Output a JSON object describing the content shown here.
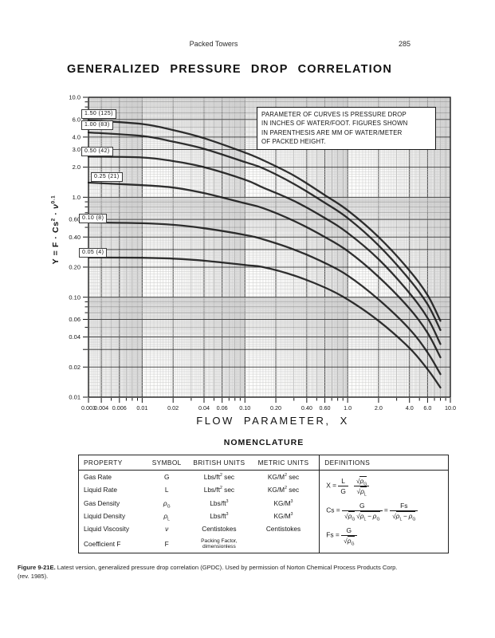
{
  "page": {
    "header": "Packed Towers",
    "page_number": "285"
  },
  "title": "GENERALIZED PRESSURE DROP CORRELATION",
  "chart_data": {
    "type": "line",
    "x_scale": "log",
    "y_scale": "log",
    "xlim": [
      0.003,
      10
    ],
    "ylim": [
      0.01,
      10
    ],
    "grid": true,
    "xlabel": "FLOW PARAMETER, X",
    "ylabel": "Y = F·Cs²·ν^0.1",
    "ylabel_html": "Y = F · Cs<sup>2</sup> · <i>ν</i><sup>0.1</sup>",
    "annotation": "PARAMETER OF CURVES IS PRESSURE DROP IN INCHES OF WATER/FOOT. FIGURES SHOWN IN PARENTHESIS ARE MM OF WATER/METER OF PACKED HEIGHT.",
    "annotation_html": "PARAMETER OF CURVES IS PRESSURE DROP<br>IN INCHES OF WATER/FOOT. FIGURES SHOWN<br>IN PARENTHESIS ARE MM OF WATER/METER<br>OF PACKED HEIGHT.",
    "x_ticks": {
      "values": [
        0.003,
        0.004,
        0.006,
        0.01,
        0.02,
        0.04,
        0.06,
        0.1,
        0.2,
        0.4,
        0.6,
        1.0,
        2.0,
        4.0,
        6.0,
        10.0
      ],
      "labels": [
        "0.003",
        "0.004",
        "0.006",
        "0.01",
        "0.02",
        "0.04",
        "0.06",
        "0.10",
        "0.20",
        "0.40",
        "0.60",
        "1.0",
        "2.0",
        "4.0",
        "6.0",
        "10.0"
      ]
    },
    "y_ticks": {
      "values": [
        10.0,
        6.0,
        4.0,
        3.0,
        2.0,
        1.0,
        0.6,
        0.4,
        0.2,
        0.1,
        0.06,
        0.04,
        0.02,
        0.01
      ],
      "labels": [
        "10.0",
        "6.0",
        "4.0",
        "3.0",
        "2.0",
        "1.0",
        "0.60",
        "0.40",
        "0.20",
        "0.10",
        "0.06",
        "0.04",
        "0.02",
        "0.01"
      ]
    },
    "curves": [
      {
        "label": "1.50 (125)",
        "pressure_drop_in_per_ft": 1.5,
        "mm_per_m": 125,
        "points": [
          [
            0.003,
            5.9
          ],
          [
            0.01,
            5.4
          ],
          [
            0.02,
            4.7
          ],
          [
            0.04,
            3.9
          ],
          [
            0.1,
            2.8
          ],
          [
            0.15,
            2.35
          ],
          [
            0.3,
            1.65
          ],
          [
            0.6,
            1.05
          ],
          [
            1.0,
            0.74
          ],
          [
            2.0,
            0.4
          ],
          [
            4.0,
            0.185
          ],
          [
            6.0,
            0.105
          ],
          [
            8.0,
            0.058
          ]
        ]
      },
      {
        "label": "1.00 (83)",
        "pressure_drop_in_per_ft": 1.0,
        "mm_per_m": 83,
        "points": [
          [
            0.003,
            4.45
          ],
          [
            0.01,
            4.1
          ],
          [
            0.02,
            3.6
          ],
          [
            0.04,
            3.05
          ],
          [
            0.1,
            2.25
          ],
          [
            0.15,
            1.95
          ],
          [
            0.3,
            1.36
          ],
          [
            0.6,
            0.88
          ],
          [
            1.0,
            0.62
          ],
          [
            2.0,
            0.33
          ],
          [
            4.0,
            0.15
          ],
          [
            6.0,
            0.085
          ],
          [
            8.0,
            0.047
          ]
        ]
      },
      {
        "label": "0.50 (42)",
        "pressure_drop_in_per_ft": 0.5,
        "mm_per_m": 42,
        "points": [
          [
            0.003,
            2.55
          ],
          [
            0.01,
            2.5
          ],
          [
            0.02,
            2.3
          ],
          [
            0.04,
            2.0
          ],
          [
            0.1,
            1.5
          ],
          [
            0.15,
            1.25
          ],
          [
            0.3,
            0.92
          ],
          [
            0.6,
            0.62
          ],
          [
            1.0,
            0.44
          ],
          [
            2.0,
            0.24
          ],
          [
            4.0,
            0.11
          ],
          [
            6.0,
            0.062
          ],
          [
            8.0,
            0.034
          ]
        ]
      },
      {
        "label": "0.25 (21)",
        "pressure_drop_in_per_ft": 0.25,
        "mm_per_m": 21,
        "points": [
          [
            0.003,
            1.4
          ],
          [
            0.01,
            1.32
          ],
          [
            0.02,
            1.25
          ],
          [
            0.04,
            1.1
          ],
          [
            0.1,
            0.87
          ],
          [
            0.15,
            0.78
          ],
          [
            0.3,
            0.58
          ],
          [
            0.6,
            0.4
          ],
          [
            1.0,
            0.29
          ],
          [
            2.0,
            0.16
          ],
          [
            4.0,
            0.077
          ],
          [
            6.0,
            0.044
          ],
          [
            8.0,
            0.025
          ]
        ]
      },
      {
        "label": "0.10 (8)",
        "pressure_drop_in_per_ft": 0.1,
        "mm_per_m": 8,
        "points": [
          [
            0.003,
            0.56
          ],
          [
            0.01,
            0.55
          ],
          [
            0.02,
            0.53
          ],
          [
            0.04,
            0.49
          ],
          [
            0.1,
            0.42
          ],
          [
            0.15,
            0.38
          ],
          [
            0.3,
            0.3
          ],
          [
            0.6,
            0.22
          ],
          [
            1.0,
            0.165
          ],
          [
            2.0,
            0.095
          ],
          [
            4.0,
            0.048
          ],
          [
            6.0,
            0.028
          ],
          [
            8.0,
            0.017
          ]
        ]
      },
      {
        "label": "0.05 (4)",
        "pressure_drop_in_per_ft": 0.05,
        "mm_per_m": 4,
        "points": [
          [
            0.003,
            0.25
          ],
          [
            0.01,
            0.248
          ],
          [
            0.02,
            0.243
          ],
          [
            0.04,
            0.232
          ],
          [
            0.1,
            0.21
          ],
          [
            0.15,
            0.2
          ],
          [
            0.3,
            0.165
          ],
          [
            0.6,
            0.125
          ],
          [
            1.0,
            0.095
          ],
          [
            2.0,
            0.058
          ],
          [
            4.0,
            0.031
          ],
          [
            6.0,
            0.019
          ],
          [
            8.0,
            0.0125
          ]
        ]
      }
    ],
    "legend_position": "curve labels on-plot, upper-left"
  },
  "nomenclature": {
    "title": "NOMENCLATURE",
    "headers": [
      "PROPERTY",
      "SYMBOL",
      "BRITISH UNITS",
      "METRIC UNITS",
      "DEFINITIONS"
    ],
    "rows": [
      {
        "property": "Gas Rate",
        "symbol_html": "G",
        "british_html": "Lbs/ft<sup>2</sup> sec",
        "metric_html": "KG/M<sup>2</sup> sec"
      },
      {
        "property": "Liquid Rate",
        "symbol_html": "L",
        "british_html": "Lbs/ft<sup>2</sup> sec",
        "metric_html": "KG/M<sup>2</sup> sec"
      },
      {
        "property": "Gas Density",
        "symbol_html": "<i>ρ</i><sub>G</sub>",
        "british_html": "Lbs/ft<sup>3</sup>",
        "metric_html": "KG/M<sup>3</sup>"
      },
      {
        "property": "Liquid Density",
        "symbol_html": "<i>ρ</i><sub>L</sub>",
        "british_html": "Lbs/ft<sup>3</sup>",
        "metric_html": "KG/M<sup>3</sup>"
      },
      {
        "property": "Liquid Viscosity",
        "symbol_html": "<i>ν</i>",
        "british_html": "Centistokes",
        "metric_html": "Centistokes"
      },
      {
        "property": "Coefficient F",
        "symbol_html": "F",
        "british_html": "<span class=\"small2\">Packing Factor,<br>dimensionless</span>",
        "metric_html": ""
      }
    ],
    "definitions": {
      "x_html": "X&nbsp;=&nbsp;<span class=\"frac\"><span class=\"num\">L</span><span class=\"den\">G</span></span><span class=\"frac\" style=\"margin-left:7px\"><span class=\"num\">√<span class=\"ov\"><i>ρ</i><sub>G</sub></span></span><span class=\"den\">√<span class=\"ov\"><i>ρ</i><sub>L</sub></span></span></span>",
      "cs_html": "Cs&nbsp;=&nbsp;<span class=\"frac\"><span class=\"num\">G</span><span class=\"den\">√<span class=\"ov\"><i>ρ</i><sub>G</sub></span>&#8201;√<span class=\"ov\"><i>ρ</i><sub>L</sub>&#8201;−&#8201;<i>ρ</i><sub>G</sub></span></span></span>&nbsp;=&nbsp;<span class=\"frac\"><span class=\"num\">Fs</span><span class=\"den\">√<span class=\"ov\"><i>ρ</i><sub>L</sub>&#8201;−&#8201;<i>ρ</i><sub>G</sub></span></span></span>",
      "fs_html": "Fs&nbsp;=&nbsp;<span class=\"frac\"><span class=\"num\">G</span><span class=\"den\">√<span class=\"ov\"><i>ρ</i><sub>G</sub></span></span></span>"
    }
  },
  "caption": {
    "bold": "Figure 9-21E.",
    "text": " Latest version, generalized pressure drop correlation (GPDC). Used by permission of Norton Chemical Process Products Corp.",
    "line2": "(rev. 1985)."
  }
}
